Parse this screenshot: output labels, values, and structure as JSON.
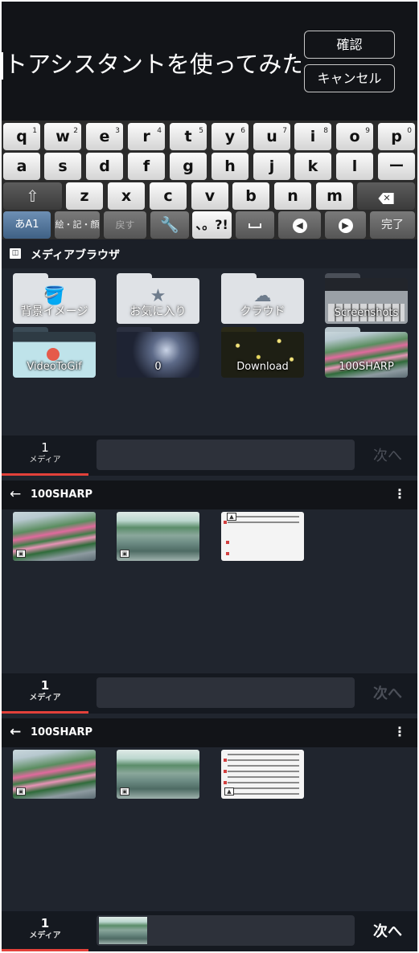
{
  "input": {
    "text": "トアシスタントを使ってみた!!"
  },
  "header_buttons": {
    "confirm": "確認",
    "cancel": "キャンセル"
  },
  "keyboard": {
    "row1": [
      {
        "k": "q",
        "s": "1"
      },
      {
        "k": "w",
        "s": "2"
      },
      {
        "k": "e",
        "s": "3"
      },
      {
        "k": "r",
        "s": "4"
      },
      {
        "k": "t",
        "s": "5"
      },
      {
        "k": "y",
        "s": "6"
      },
      {
        "k": "u",
        "s": "7"
      },
      {
        "k": "i",
        "s": "8"
      },
      {
        "k": "o",
        "s": "9"
      },
      {
        "k": "p",
        "s": "0"
      }
    ],
    "row2": [
      "a",
      "s",
      "d",
      "f",
      "g",
      "h",
      "j",
      "k",
      "l",
      "ー"
    ],
    "row3": [
      "z",
      "x",
      "c",
      "v",
      "b",
      "n",
      "m"
    ],
    "mode_label": "あA1",
    "symbols_label": "絵・記・顔",
    "undo_label": "戻す",
    "punct_label": "、。?!",
    "done_label": "完了"
  },
  "media_browser": {
    "title": "メディアブラウザ",
    "folders": [
      "背景イメージ",
      "お気に入り",
      "クラウド",
      "Screenshots",
      "VideoToGif",
      "0",
      "Download",
      "100SHARP"
    ]
  },
  "selection_bars": [
    {
      "count": "1",
      "label": "メディア",
      "next": "次へ"
    },
    {
      "count": "1",
      "label": "メディア",
      "next": "次へ"
    },
    {
      "count": "1",
      "label": "メディア",
      "next": "次へ"
    }
  ],
  "albums": [
    {
      "title": "100SHARP"
    },
    {
      "title": "100SHARP"
    }
  ],
  "colors": {
    "background": "#20252e",
    "accent_underline": "#e3413a",
    "header": "#121418"
  }
}
